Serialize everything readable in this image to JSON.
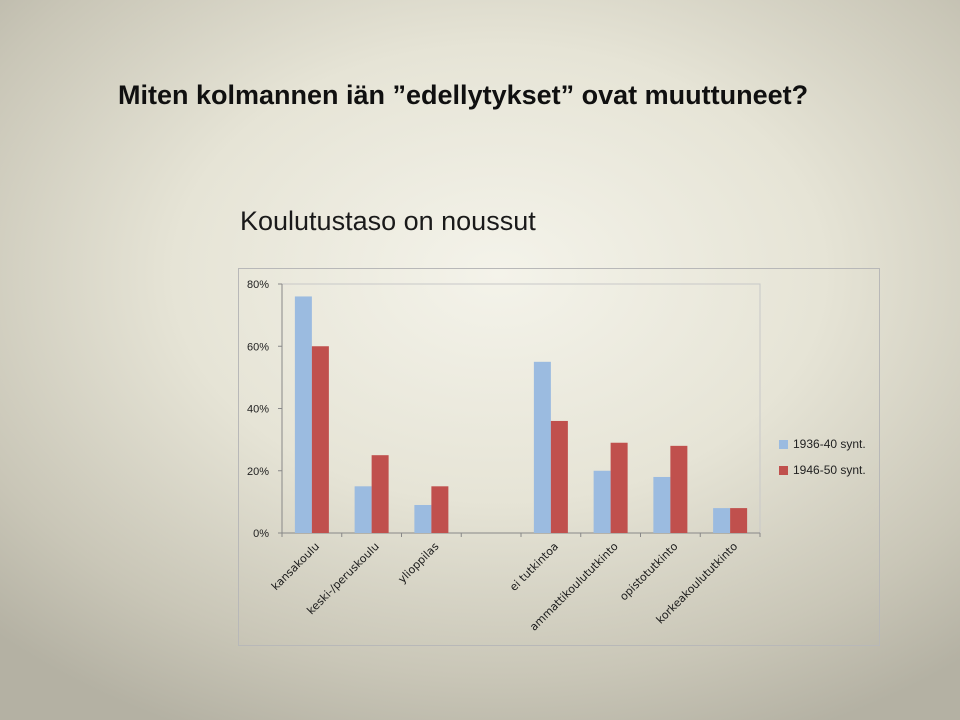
{
  "slide": {
    "title": "Miten kolmannen iän ”edellytykset” ovat muuttuneet?"
  },
  "chart_data": {
    "type": "bar",
    "title": "Koulutustaso on noussut",
    "xlabel": "",
    "ylabel": "",
    "ylim": [
      0,
      80
    ],
    "yticks": [
      "0%",
      "20%",
      "40%",
      "60%",
      "80%"
    ],
    "grid": false,
    "legend_position": "right",
    "categories": [
      "kansakoulu",
      "keski-/peruskoulu",
      "ylioppilas",
      "",
      "ei tutkintoa",
      "ammattikoulututkinto",
      "opistotutkinto",
      "korkeakoulututkinto"
    ],
    "series": [
      {
        "name": "1936-40 synt.",
        "color": "#9bbbe0",
        "values": [
          76,
          15,
          9,
          null,
          55,
          20,
          18,
          8
        ]
      },
      {
        "name": "1946-50 synt.",
        "color": "#c0504d",
        "values": [
          60,
          25,
          15,
          null,
          36,
          29,
          28,
          8
        ]
      }
    ]
  }
}
